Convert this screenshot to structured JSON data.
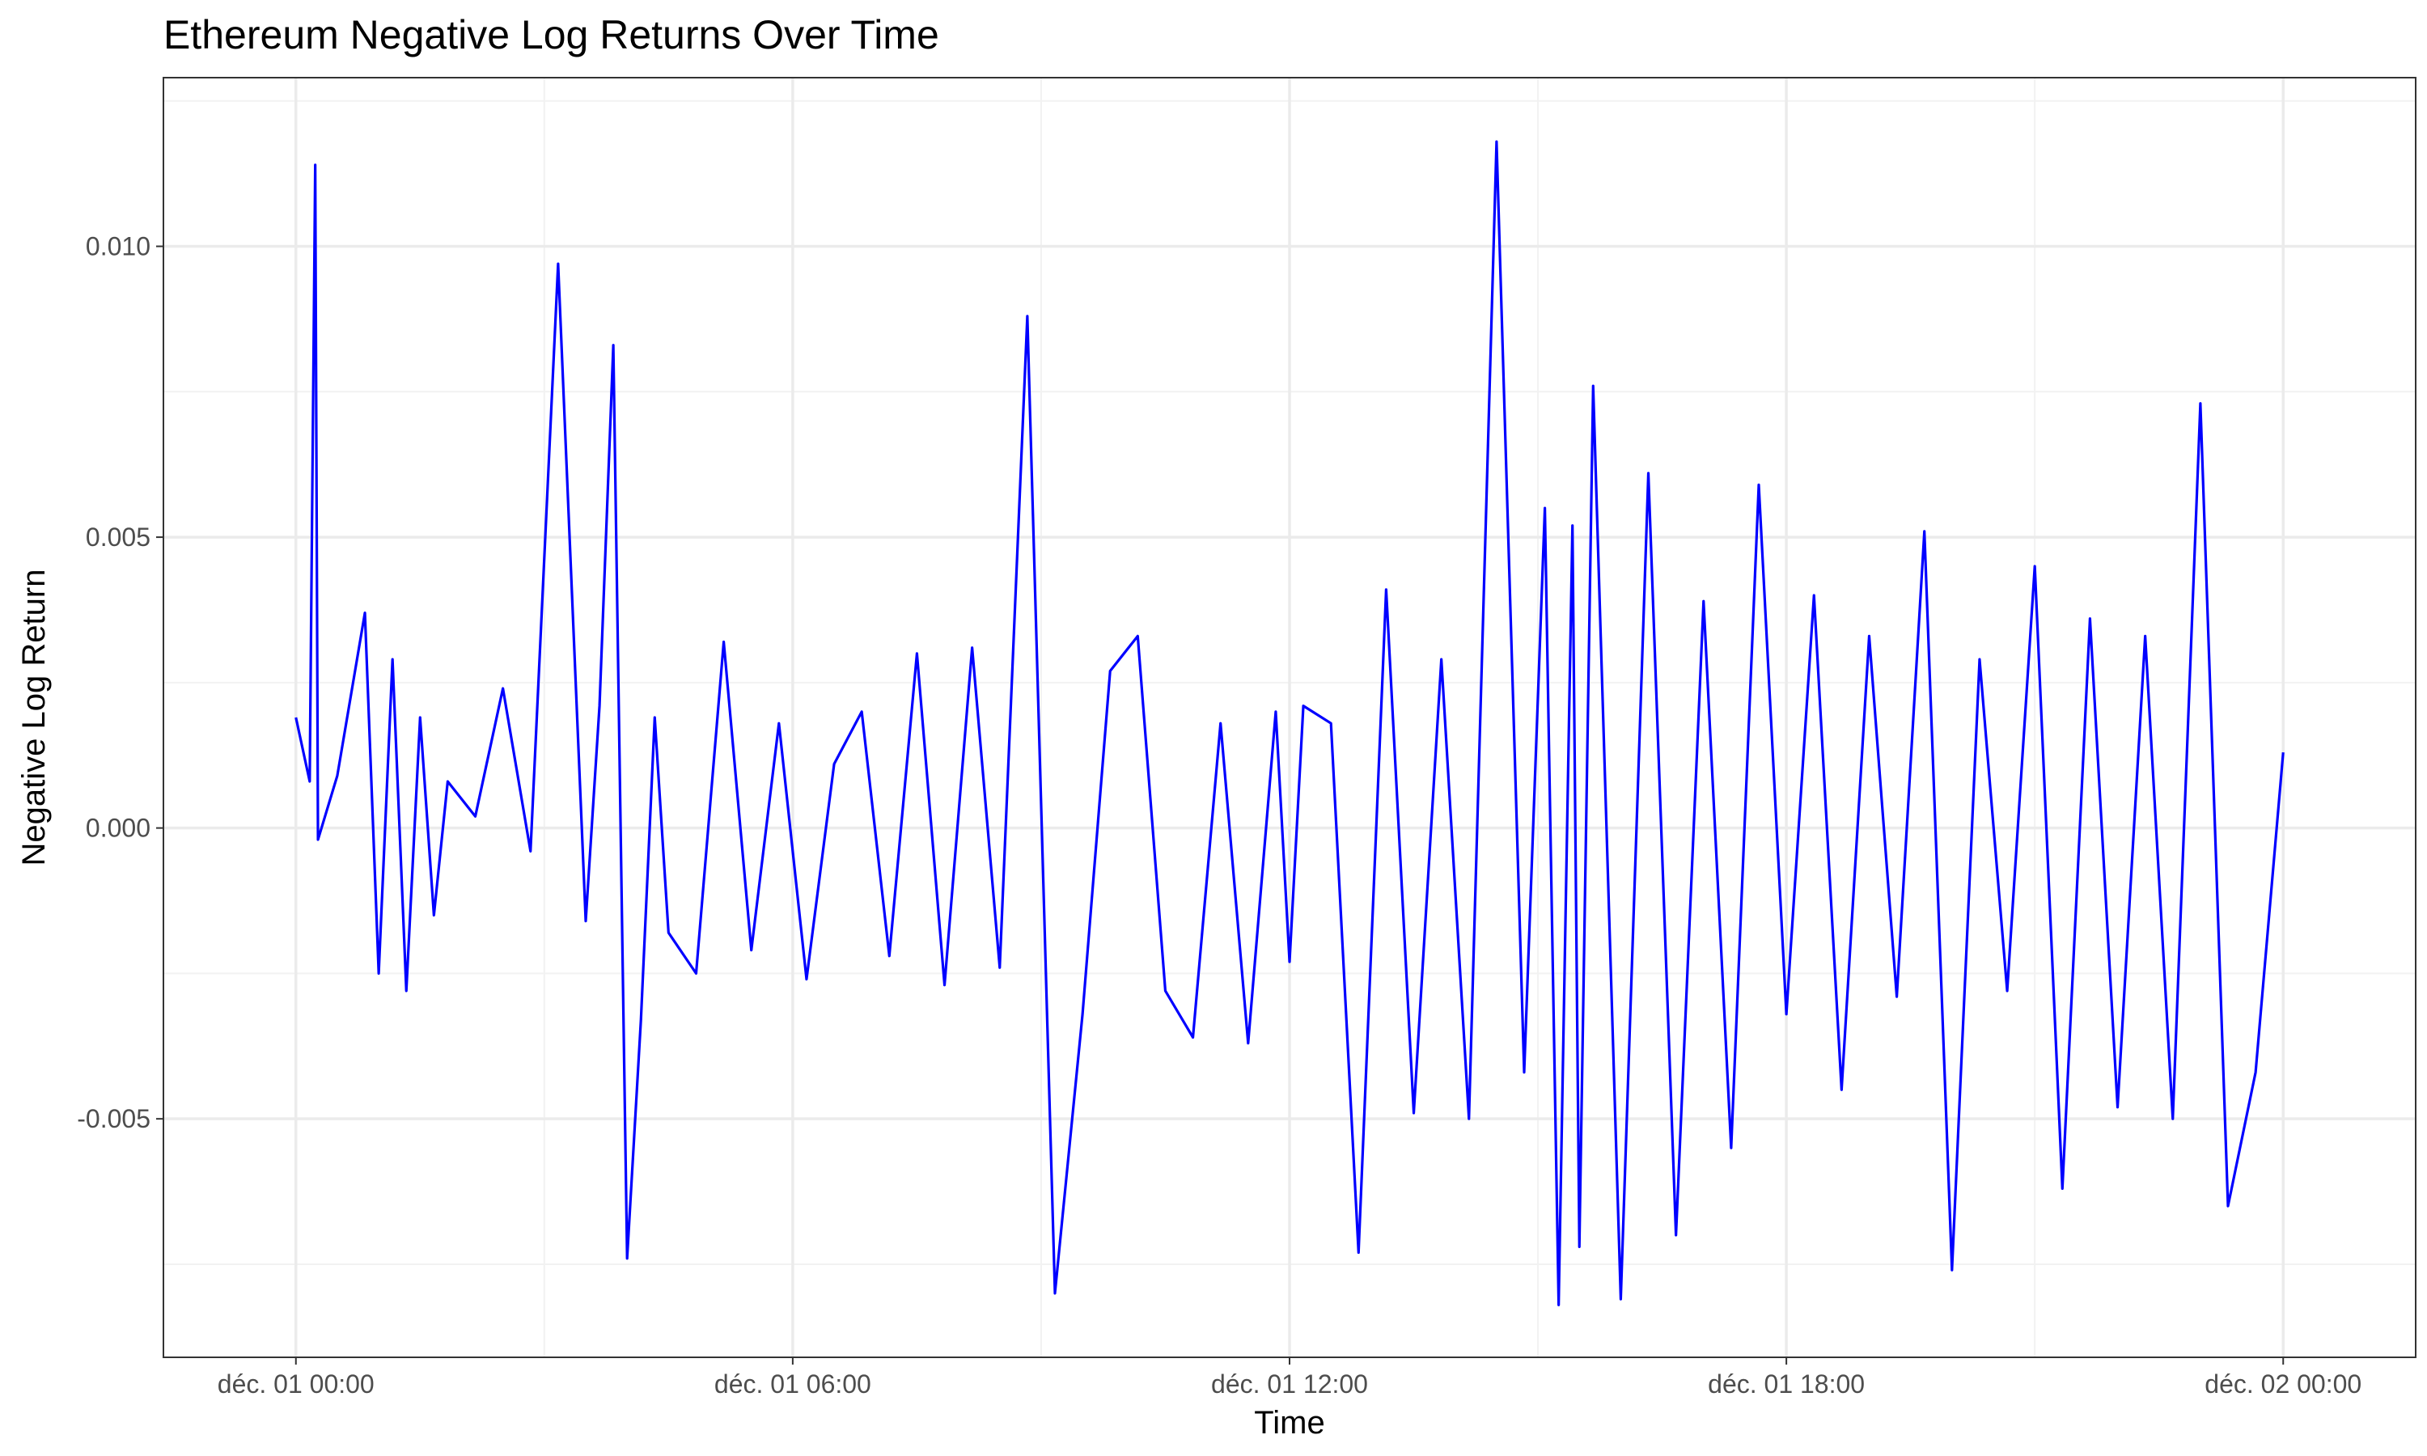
{
  "chart_data": {
    "type": "line",
    "title": "Ethereum Negative Log Returns Over Time",
    "xlabel": "Time",
    "ylabel": "Negative Log Return",
    "x_start": "2021-12-01 00:00",
    "x_end": "2021-12-02 00:00",
    "x_step_minutes": 1,
    "xlim": [
      "2021-11-30 22:24",
      "2021-12-02 01:36"
    ],
    "ylim": [
      -0.0091,
      0.0129
    ],
    "x_ticks": [
      {
        "value": "2021-12-01 00:00",
        "label": "déc. 01 00:00"
      },
      {
        "value": "2021-12-01 06:00",
        "label": "déc. 01 06:00"
      },
      {
        "value": "2021-12-01 12:00",
        "label": "déc. 01 12:00"
      },
      {
        "value": "2021-12-01 18:00",
        "label": "déc. 01 18:00"
      },
      {
        "value": "2021-12-02 00:00",
        "label": "déc. 02 00:00"
      }
    ],
    "y_ticks": [
      {
        "value": -0.005,
        "label": "-0.005"
      },
      {
        "value": 0.0,
        "label": "0.000"
      },
      {
        "value": 0.005,
        "label": "0.005"
      },
      {
        "value": 0.01,
        "label": "0.010"
      }
    ],
    "grid": true,
    "line_color": "#0000ff",
    "background": "#ffffff",
    "series": [
      {
        "x_minutes": [
          0,
          10,
          14,
          16,
          30,
          40,
          50,
          60,
          70,
          80,
          90,
          100,
          110,
          130,
          150,
          170,
          190,
          210,
          220,
          230,
          240,
          250,
          260,
          270,
          290,
          310,
          330,
          350,
          370,
          390,
          410,
          430,
          450,
          470,
          490,
          510,
          530,
          550,
          570,
          590,
          610,
          630,
          650,
          670,
          690,
          710,
          720,
          730,
          750,
          770,
          790,
          810,
          830,
          850,
          870,
          890,
          905,
          915,
          925,
          930,
          940,
          960,
          980,
          1000,
          1020,
          1040,
          1060,
          1080,
          1100,
          1120,
          1140,
          1160,
          1180,
          1200,
          1220,
          1240,
          1260,
          1280,
          1300,
          1320,
          1340,
          1360,
          1380,
          1400,
          1420,
          1440
        ],
        "y": [
          0.0019,
          0.0008,
          0.0114,
          -0.0002,
          0.0009,
          0.0023,
          0.0037,
          -0.0025,
          0.0029,
          -0.0028,
          0.0019,
          -0.0015,
          0.0008,
          0.0002,
          0.0024,
          -0.0004,
          0.0097,
          -0.0016,
          0.0021,
          0.0083,
          -0.0074,
          -0.0033,
          0.0019,
          -0.0018,
          -0.0025,
          0.0032,
          -0.0021,
          0.0018,
          -0.0026,
          0.0011,
          0.002,
          -0.0022,
          0.003,
          -0.0027,
          0.0031,
          -0.0024,
          0.0088,
          -0.008,
          -0.0032,
          0.0027,
          0.0033,
          -0.0028,
          -0.0036,
          0.0018,
          -0.0037,
          0.002,
          -0.0023,
          0.0021,
          0.0018,
          -0.0073,
          0.0041,
          -0.0049,
          0.0029,
          -0.005,
          0.0118,
          -0.0042,
          0.0055,
          -0.0082,
          0.0052,
          -0.0072,
          0.0076,
          -0.0081,
          0.0061,
          -0.007,
          0.0039,
          -0.0055,
          0.0059,
          -0.0032,
          0.004,
          -0.0045,
          0.0033,
          -0.0029,
          0.0051,
          -0.0076,
          0.0029,
          -0.0028,
          0.0045,
          -0.0062,
          0.0036,
          -0.0048,
          0.0033,
          -0.005,
          0.0073,
          -0.0065,
          -0.0042,
          0.0013
        ]
      }
    ]
  }
}
